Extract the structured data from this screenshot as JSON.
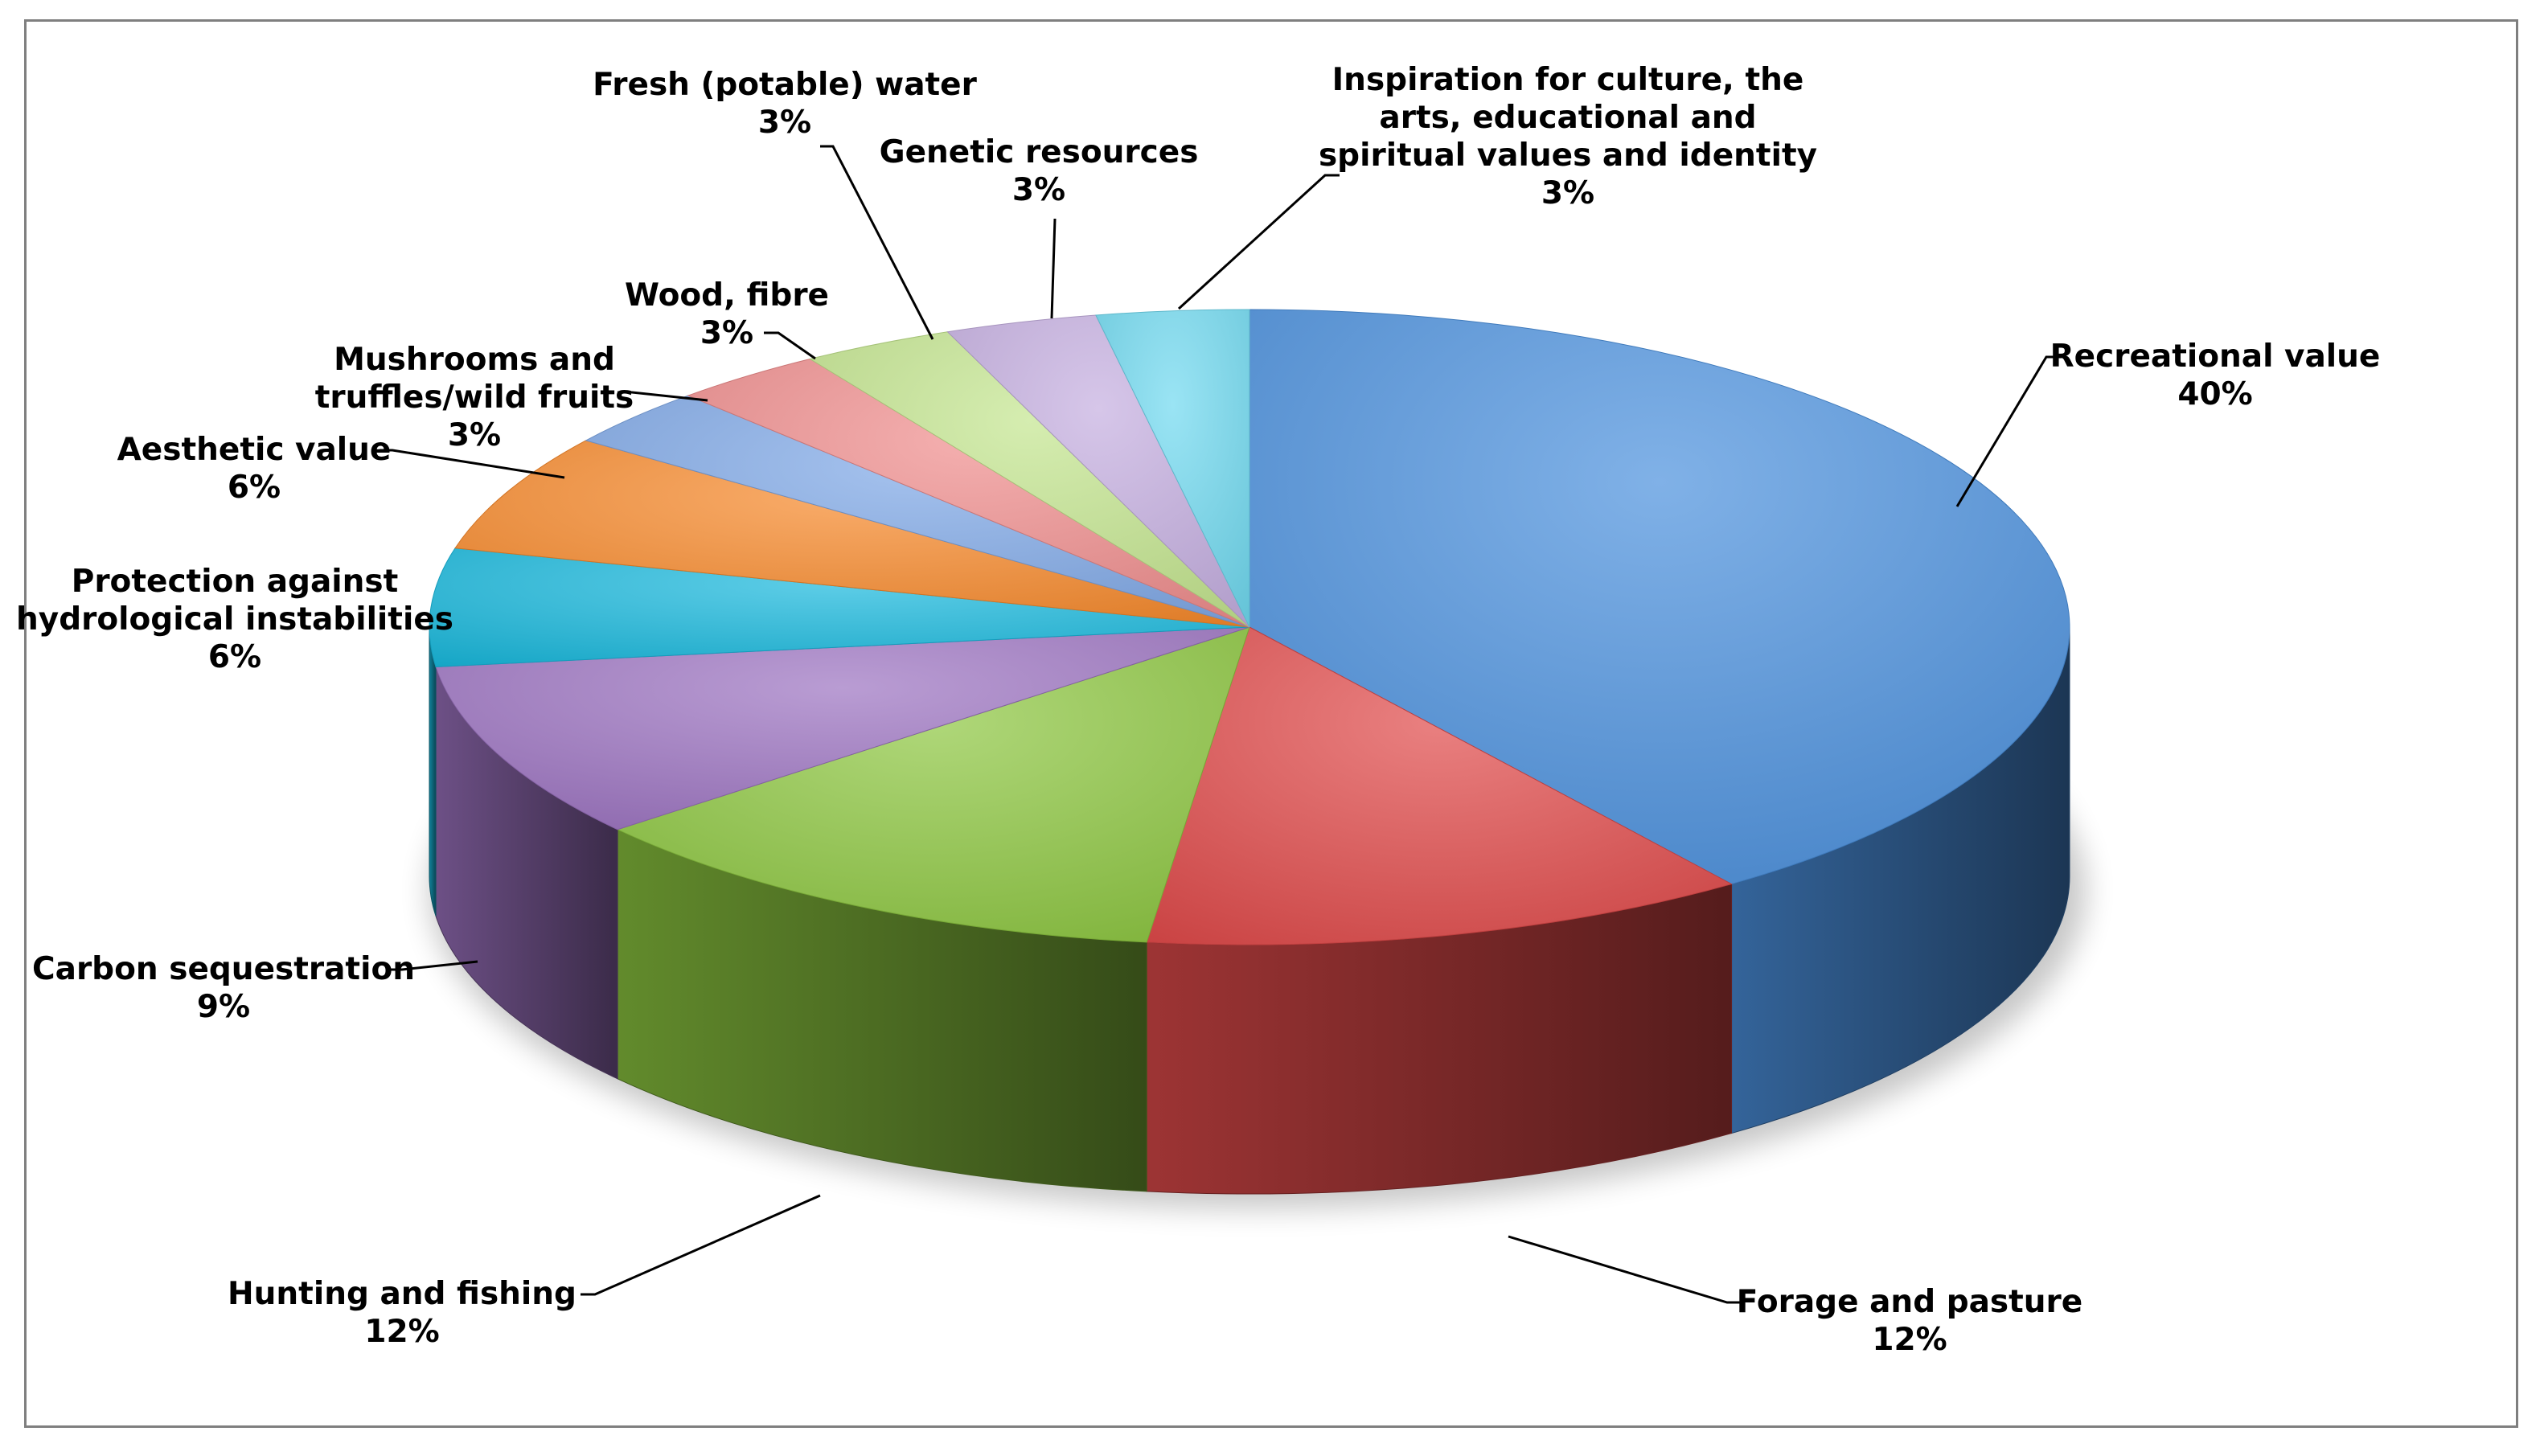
{
  "chart_data": {
    "type": "pie",
    "three_d": true,
    "legend": "none",
    "start": "top-center",
    "direction": "clockwise",
    "slices": [
      {
        "label": "Recreational value",
        "value": 40,
        "value_label": "40%",
        "color": "#4a8fdc"
      },
      {
        "label": "Forage and pasture",
        "value": 12,
        "value_label": "12%",
        "color": "#e04a4a"
      },
      {
        "label": "Hunting and fishing",
        "value": 12,
        "value_label": "12%",
        "color": "#8cc63f"
      },
      {
        "label": "Carbon sequestration",
        "value": 9,
        "value_label": "9%",
        "color": "#9b72c0"
      },
      {
        "label": "Protection against hydrological instabilities",
        "label_lines": [
          "Protection against",
          "hydrological instabilities"
        ],
        "value": 6,
        "value_label": "6%",
        "color": "#18b8dc"
      },
      {
        "label": "Aesthetic value",
        "value": 6,
        "value_label": "6%",
        "color": "#f7892a"
      },
      {
        "label": "Mushrooms and truffles/wild fruits",
        "label_lines": [
          "Mushrooms and",
          "truffles/wild fruits"
        ],
        "value": 3,
        "value_label": "3%",
        "color": "#7fa8e6"
      },
      {
        "label": "Wood, fibre",
        "value": 3,
        "value_label": "3%",
        "color": "#ef8c8c"
      },
      {
        "label": "Fresh (potable) water",
        "value": 3,
        "value_label": "3%",
        "color": "#c3e58e"
      },
      {
        "label": "Genetic resources",
        "value": 3,
        "value_label": "3%",
        "color": "#c5aee0"
      },
      {
        "label": "Inspiration for culture, the arts, educational and spiritual values and identity",
        "label_lines": [
          "Inspiration for culture, the",
          "arts, educational and",
          "spiritual values and identity"
        ],
        "value": 3,
        "value_label": "3%",
        "color": "#6fd9ef"
      }
    ]
  }
}
